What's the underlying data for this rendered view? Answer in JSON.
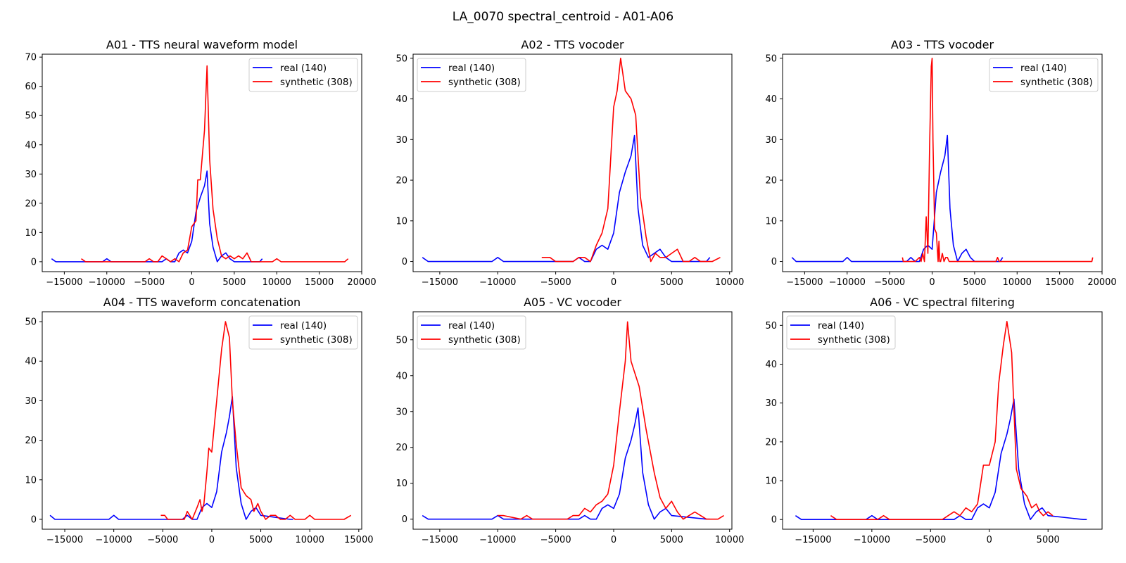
{
  "figure": {
    "suptitle": "LA_0070 spectral_centroid - A01-A06"
  },
  "chart_data": [
    {
      "type": "line",
      "title": "A01 - TTS neural waveform model",
      "xlim": [
        -17600,
        20000
      ],
      "ylim": [
        -3.4,
        71
      ],
      "xticks": [
        -15000,
        -10000,
        -5000,
        0,
        5000,
        10000,
        15000,
        20000
      ],
      "yticks": [
        0,
        10,
        20,
        30,
        40,
        50,
        60,
        70
      ],
      "legend": "top-right",
      "series": [
        {
          "name": "real (140)",
          "color": "#0000ff",
          "x": [
            -16500,
            -16000,
            -10500,
            -10000,
            -9500,
            -3500,
            -3000,
            -2500,
            -2000,
            -1500,
            -1000,
            -500,
            0,
            500,
            1000,
            1500,
            1800,
            2100,
            2500,
            3000,
            3500,
            4000,
            4500,
            5000,
            8000,
            8300
          ],
          "y": [
            1,
            0,
            0,
            1,
            0,
            0,
            1,
            0,
            0,
            3,
            4,
            3,
            7,
            17,
            22,
            26,
            31,
            13,
            5,
            0,
            2,
            3,
            1,
            0,
            0,
            1
          ]
        },
        {
          "name": "synthetic (308)",
          "color": "#ff0000",
          "x": [
            -13000,
            -12500,
            -5500,
            -5000,
            -4500,
            -4000,
            -3500,
            -3000,
            -2500,
            -2000,
            -1500,
            -1000,
            -500,
            0,
            500,
            700,
            1000,
            1500,
            1800,
            2100,
            2500,
            3000,
            3500,
            4000,
            4500,
            5000,
            5500,
            6000,
            6500,
            7000,
            9500,
            10000,
            10500,
            18000,
            18400
          ],
          "y": [
            1,
            0,
            0,
            1,
            0,
            0,
            2,
            1,
            0,
            1,
            0,
            3,
            4,
            12,
            14,
            28,
            28,
            45,
            67,
            35,
            18,
            8,
            2,
            1,
            2,
            1,
            2,
            1,
            3,
            0,
            0,
            1,
            0,
            0,
            1
          ]
        }
      ]
    },
    {
      "type": "line",
      "title": "A02 - TTS vocoder",
      "xlim": [
        -17300,
        10200
      ],
      "ylim": [
        -2.5,
        51
      ],
      "xticks": [
        -15000,
        -10000,
        -5000,
        0,
        5000,
        10000
      ],
      "yticks": [
        0,
        10,
        20,
        30,
        40,
        50
      ],
      "legend": "top-left",
      "series": [
        {
          "name": "real (140)",
          "color": "#0000ff",
          "x": [
            -16500,
            -16000,
            -10500,
            -10000,
            -9500,
            -3500,
            -3000,
            -2500,
            -2000,
            -1500,
            -1000,
            -500,
            0,
            500,
            1000,
            1500,
            1800,
            2100,
            2500,
            3000,
            3500,
            4000,
            4500,
            5000,
            8000,
            8300
          ],
          "y": [
            1,
            0,
            0,
            1,
            0,
            0,
            1,
            0,
            0,
            3,
            4,
            3,
            7,
            17,
            22,
            26,
            31,
            13,
            4,
            1,
            2,
            3,
            1,
            0,
            0,
            1
          ]
        },
        {
          "name": "synthetic (308)",
          "color": "#ff0000",
          "x": [
            -6200,
            -5500,
            -5000,
            -3500,
            -3000,
            -2500,
            -2000,
            -1500,
            -1000,
            -500,
            0,
            300,
            600,
            1000,
            1500,
            1900,
            2300,
            2800,
            3200,
            3600,
            4000,
            4500,
            5000,
            5500,
            6000,
            6500,
            7000,
            7500,
            8500,
            9200
          ],
          "y": [
            1,
            1,
            0,
            0,
            1,
            1,
            0,
            4,
            7,
            13,
            38,
            42,
            50,
            42,
            40,
            36,
            16,
            6,
            0,
            2,
            1,
            1,
            2,
            3,
            0,
            0,
            1,
            0,
            0,
            1
          ]
        }
      ]
    },
    {
      "type": "line",
      "title": "A03 - TTS vocoder",
      "xlim": [
        -17600,
        20000
      ],
      "ylim": [
        -2.5,
        51
      ],
      "xticks": [
        -15000,
        -10000,
        -5000,
        0,
        5000,
        10000,
        15000,
        20000
      ],
      "yticks": [
        0,
        10,
        20,
        30,
        40,
        50
      ],
      "legend": "top-right",
      "series": [
        {
          "name": "real (140)",
          "color": "#0000ff",
          "x": [
            -16500,
            -16000,
            -10500,
            -10000,
            -9500,
            -3000,
            -2500,
            -2000,
            -1500,
            -1000,
            -500,
            0,
            500,
            1000,
            1500,
            1800,
            2100,
            2500,
            3000,
            3500,
            4000,
            4500,
            5000,
            8000,
            8300
          ],
          "y": [
            1,
            0,
            0,
            1,
            0,
            0,
            1,
            0,
            0,
            3,
            4,
            3,
            17,
            22,
            26,
            31,
            13,
            4,
            0,
            2,
            3,
            1,
            0,
            0,
            1
          ]
        },
        {
          "name": "synthetic (308)",
          "color": "#ff0000",
          "x": [
            -3500,
            -3400,
            -3200,
            -2000,
            -1500,
            -1300,
            -1100,
            -900,
            -700,
            -500,
            -300,
            -100,
            0,
            100,
            300,
            500,
            700,
            800,
            900,
            1000,
            1200,
            1400,
            1600,
            1800,
            2000,
            2200,
            7500,
            7700,
            7900,
            18800,
            18900
          ],
          "y": [
            1,
            0,
            0,
            0,
            1,
            0,
            2,
            0,
            11,
            2,
            28,
            48,
            50,
            30,
            8,
            7,
            0,
            5,
            0,
            0,
            2,
            0,
            1,
            1,
            0,
            0,
            0,
            1,
            0,
            0,
            1
          ]
        }
      ]
    },
    {
      "type": "line",
      "title": "A04 - TTS waveform concatenation",
      "xlim": [
        -17300,
        15300
      ],
      "ylim": [
        -2.5,
        52.5
      ],
      "xticks": [
        -15000,
        -10000,
        -5000,
        0,
        5000,
        10000,
        15000
      ],
      "yticks": [
        0,
        10,
        20,
        30,
        40,
        50
      ],
      "legend": "top-right",
      "series": [
        {
          "name": "real (140)",
          "color": "#0000ff",
          "x": [
            -16500,
            -16000,
            -10500,
            -10000,
            -9500,
            -3000,
            -2500,
            -2000,
            -1500,
            -1000,
            -500,
            0,
            500,
            1000,
            1500,
            1800,
            2100,
            2500,
            3000,
            3500,
            4000,
            4500,
            5000,
            8000,
            8300
          ],
          "y": [
            1,
            0,
            0,
            1,
            0,
            0,
            1,
            0,
            0,
            3,
            4,
            3,
            7,
            17,
            22,
            26,
            31,
            13,
            4,
            0,
            2,
            3,
            1,
            0,
            0
          ]
        },
        {
          "name": "synthetic (308)",
          "color": "#ff0000",
          "x": [
            -5200,
            -4800,
            -4500,
            -3000,
            -2800,
            -2500,
            -2000,
            -1500,
            -1200,
            -1000,
            -800,
            -500,
            -300,
            0,
            500,
            1000,
            1400,
            1800,
            2100,
            2500,
            3000,
            3500,
            4000,
            4300,
            4700,
            5000,
            5500,
            6000,
            6500,
            7000,
            7500,
            8000,
            8500,
            9500,
            10000,
            10500,
            13500,
            14200
          ],
          "y": [
            1,
            1,
            0,
            0,
            0,
            2,
            0,
            3,
            5,
            2,
            4,
            12,
            18,
            17,
            30,
            43,
            50,
            46,
            30,
            19,
            8,
            6,
            5,
            2,
            4,
            2,
            0,
            1,
            1,
            0,
            0,
            1,
            0,
            0,
            1,
            0,
            0,
            1
          ]
        }
      ]
    },
    {
      "type": "line",
      "title": "A05 - VC vocoder",
      "xlim": [
        -17300,
        10200
      ],
      "ylim": [
        -2.8,
        57.8
      ],
      "xticks": [
        -15000,
        -10000,
        -5000,
        0,
        5000,
        10000
      ],
      "yticks": [
        0,
        10,
        20,
        30,
        40,
        50
      ],
      "legend": "top-left",
      "series": [
        {
          "name": "real (140)",
          "color": "#0000ff",
          "x": [
            -16500,
            -16000,
            -10500,
            -10000,
            -9500,
            -3000,
            -2500,
            -2000,
            -1500,
            -1000,
            -500,
            0,
            500,
            1000,
            1500,
            1800,
            2100,
            2500,
            3000,
            3500,
            4000,
            4500,
            5000,
            8000,
            8300
          ],
          "y": [
            1,
            0,
            0,
            1,
            0,
            0,
            1,
            0,
            0,
            3,
            4,
            3,
            7,
            17,
            22,
            26,
            31,
            13,
            4,
            0,
            2,
            3,
            1,
            0,
            0
          ]
        },
        {
          "name": "synthetic (308)",
          "color": "#ff0000",
          "x": [
            -10000,
            -9500,
            -8000,
            -7500,
            -7000,
            -4000,
            -3500,
            -3000,
            -2500,
            -2000,
            -1500,
            -1000,
            -500,
            0,
            500,
            1000,
            1200,
            1500,
            2200,
            2800,
            3500,
            4000,
            4500,
            5000,
            5500,
            6000,
            6500,
            7000,
            7500,
            8000,
            8500,
            9000,
            9500
          ],
          "y": [
            1,
            1,
            0,
            1,
            0,
            0,
            1,
            1,
            3,
            2,
            4,
            5,
            7,
            15,
            30,
            44,
            55,
            44,
            37,
            25,
            13,
            6,
            3,
            5,
            2,
            0,
            1,
            2,
            1,
            0,
            0,
            0,
            1
          ]
        }
      ]
    },
    {
      "type": "line",
      "title": "A06 - VC spectral filtering",
      "xlim": [
        -17600,
        9600
      ],
      "ylim": [
        -2.5,
        53.5
      ],
      "xticks": [
        -15000,
        -10000,
        -5000,
        0,
        5000
      ],
      "yticks": [
        0,
        10,
        20,
        30,
        40,
        50
      ],
      "legend": "top-left",
      "series": [
        {
          "name": "real (140)",
          "color": "#0000ff",
          "x": [
            -16500,
            -16000,
            -10500,
            -10000,
            -9500,
            -3000,
            -2500,
            -2000,
            -1500,
            -1000,
            -500,
            0,
            500,
            1000,
            1500,
            1800,
            2100,
            2500,
            3000,
            3500,
            4000,
            4500,
            5000,
            8000,
            8300
          ],
          "y": [
            1,
            0,
            0,
            1,
            0,
            0,
            1,
            0,
            0,
            3,
            4,
            3,
            7,
            17,
            22,
            26,
            31,
            13,
            4,
            0,
            2,
            3,
            1,
            0,
            0
          ]
        },
        {
          "name": "synthetic (308)",
          "color": "#ff0000",
          "x": [
            -13500,
            -13000,
            -9500,
            -9000,
            -8500,
            -4000,
            -3500,
            -3000,
            -2500,
            -2000,
            -1500,
            -1000,
            -500,
            0,
            500,
            800,
            1200,
            1500,
            1900,
            2300,
            2700,
            3200,
            3600,
            4000,
            4300,
            4600,
            5000,
            5400
          ],
          "y": [
            1,
            0,
            0,
            1,
            0,
            0,
            1,
            2,
            1,
            3,
            2,
            4,
            14,
            14,
            20,
            35,
            45,
            51,
            43,
            13,
            8,
            6,
            3,
            4,
            2,
            1,
            2,
            1
          ]
        }
      ]
    }
  ]
}
